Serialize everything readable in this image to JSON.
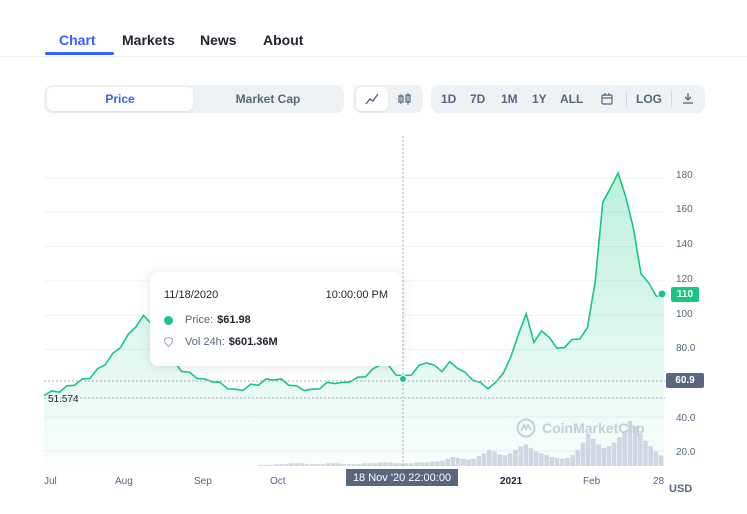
{
  "tabs": [
    {
      "label": "Chart",
      "active": true
    },
    {
      "label": "Markets",
      "active": false
    },
    {
      "label": "News",
      "active": false
    },
    {
      "label": "About",
      "active": false
    }
  ],
  "toolbar": {
    "metric_tabs": [
      "Price",
      "Market Cap"
    ],
    "selected_metric": "Price",
    "chart_modes": [
      "line-chart-icon",
      "candlestick-icon"
    ],
    "ranges": [
      "1D",
      "7D",
      "1M",
      "1Y",
      "ALL"
    ],
    "calendar_icon": "calendar-icon",
    "log_label": "LOG",
    "download_icon": "download-icon"
  },
  "tooltip": {
    "date": "11/18/2020",
    "time": "10:00:00 PM",
    "price_label": "Price:",
    "price_value": "$61.98",
    "vol_label": "Vol 24h:",
    "vol_value": "$601.36M"
  },
  "markers": {
    "last_price": "110",
    "crosshair_price": "60.9",
    "period_low": "51.574",
    "crosshair_date": "18 Nov '20   22:00:00"
  },
  "watermark": "CoinMarketCap",
  "currency": "USD",
  "colors": {
    "accent": "#3861fb",
    "up": "#16c784",
    "muted": "#58667e"
  },
  "chart_data": {
    "type": "line",
    "x_ticks": [
      "Jul",
      "Aug",
      "Sep",
      "Oct",
      "18 Nov '20",
      "2021",
      "Feb",
      "28"
    ],
    "price_axis_ticks": [
      40.0,
      60.9,
      80.0,
      100,
      110,
      120,
      140,
      160,
      180
    ],
    "price_axis_labels": [
      "40.0",
      "80.0",
      "100",
      "120",
      "140",
      "160",
      "180"
    ],
    "volume_axis_labels": [
      "20.0",
      "40.0"
    ],
    "ylim": [
      50,
      190
    ],
    "series": [
      {
        "values": [
          54,
          55,
          56,
          58,
          60,
          62,
          64,
          68,
          72,
          77,
          82,
          88,
          94,
          99,
          96,
          88,
          80,
          72,
          68,
          66,
          64,
          62,
          62,
          60,
          58,
          56,
          57,
          59,
          60,
          62,
          63,
          62,
          60,
          58,
          57,
          56,
          58,
          60,
          61,
          60,
          62,
          63,
          65,
          68,
          72,
          70,
          66,
          64,
          66,
          70,
          73,
          70,
          68,
          72,
          70,
          66,
          63,
          60,
          58,
          60,
          67,
          75,
          90,
          100,
          85,
          90,
          88,
          80,
          82,
          85,
          87,
          92,
          120,
          165,
          175,
          182,
          170,
          150,
          125,
          118,
          112,
          110
        ]
      },
      {
        "values": [
          1,
          1,
          1,
          2,
          2,
          2,
          3,
          3,
          3,
          2,
          2,
          2,
          2,
          3,
          3,
          3,
          2,
          2,
          2,
          2,
          3,
          3,
          3,
          4,
          4,
          4,
          3,
          3,
          3,
          3,
          4,
          4,
          4,
          5,
          5,
          6,
          8,
          10,
          9,
          8,
          7,
          8,
          11,
          14,
          18,
          16,
          13,
          12,
          14,
          18,
          22,
          24,
          20,
          16,
          14,
          12,
          10,
          9,
          8,
          9,
          12,
          18,
          26,
          36,
          30,
          24,
          20,
          22,
          26,
          32,
          38,
          50,
          44,
          36,
          28,
          22,
          16,
          12
        ]
      }
    ]
  }
}
